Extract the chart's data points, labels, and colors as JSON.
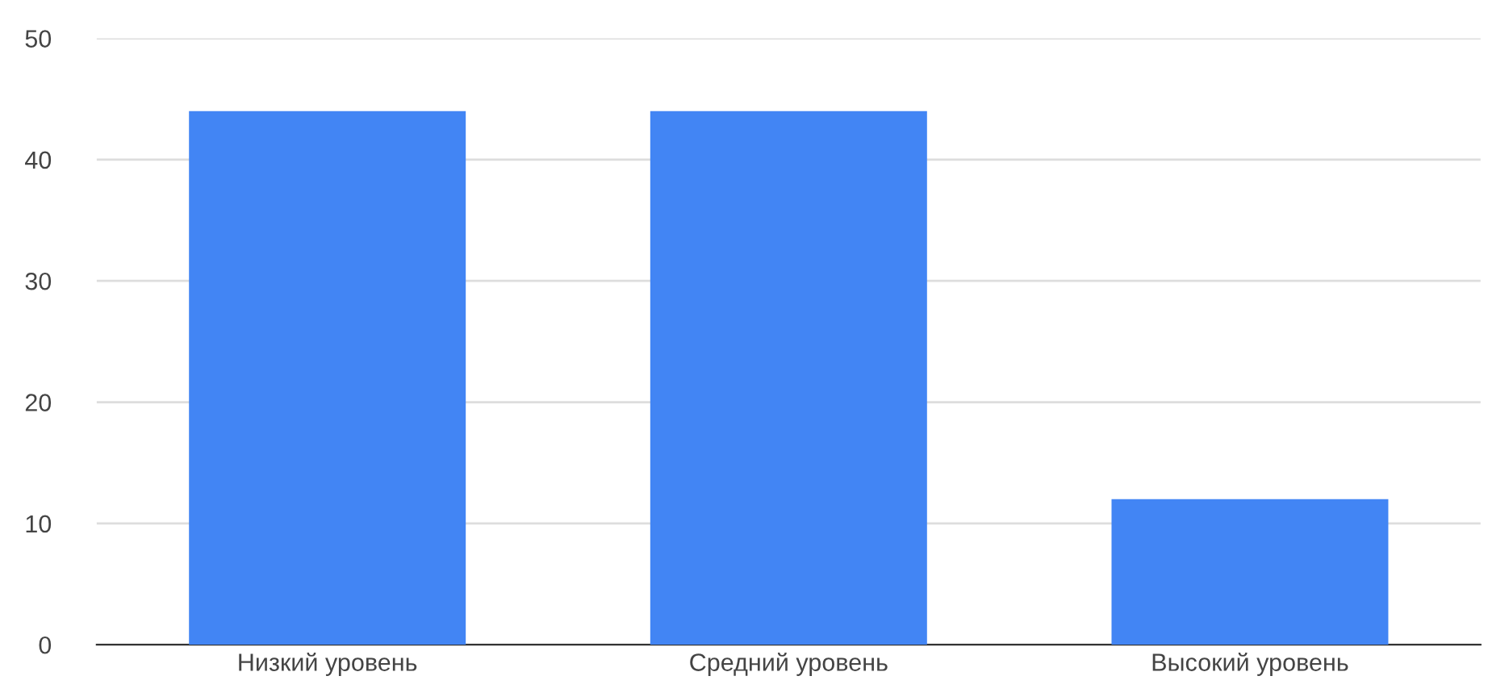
{
  "chart_data": {
    "type": "bar",
    "categories": [
      "Низкий уровень",
      "Средний уровень",
      "Высокий уровень"
    ],
    "values": [
      44,
      44,
      12
    ],
    "color": "#4285f4",
    "ylim": [
      0,
      50
    ],
    "yticks": [
      0,
      10,
      20,
      30,
      40,
      50
    ],
    "grid": "y"
  }
}
